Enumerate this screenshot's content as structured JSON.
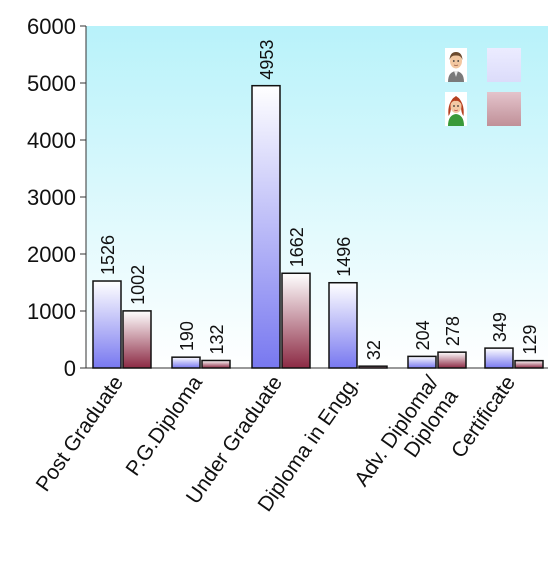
{
  "chart_data": {
    "type": "bar",
    "categories": [
      "Post Graduate",
      "P.G.Diploma",
      "Under Graduate",
      "Diploma in  Engg.",
      "Adv. Diploma/\nDiploma",
      "Certificate"
    ],
    "series": [
      {
        "values": [
          1526,
          190,
          4953,
          1496,
          204,
          349
        ],
        "icon": "male-avatar-icon",
        "color": "#7878f0"
      },
      {
        "values": [
          1002,
          132,
          1662,
          32,
          278,
          129
        ],
        "icon": "female-avatar-icon",
        "color": "#8c2a44"
      }
    ],
    "yticks": [
      0,
      1000,
      2000,
      3000,
      4000,
      5000,
      6000
    ],
    "ylim": [
      0,
      6000
    ],
    "title": "",
    "xlabel": "",
    "ylabel": "",
    "grid": false,
    "legend_position": "top-right",
    "plot_background": "#b8f2fa"
  }
}
